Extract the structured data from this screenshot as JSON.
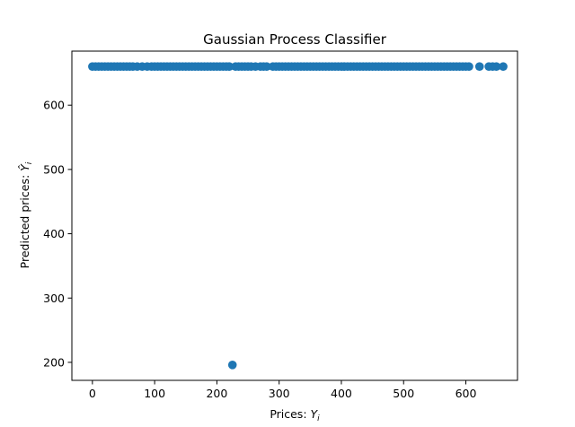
{
  "chart_data": {
    "type": "scatter",
    "title": "Gaussian Process Classifier",
    "xlabel": {
      "prefix": "Prices: ",
      "var": "Y",
      "sub": "i"
    },
    "ylabel": {
      "prefix": "Predicted prices: ",
      "var": "Ŷ",
      "sub": "i"
    },
    "xlim": [
      -33,
      683
    ],
    "ylim": [
      172,
      684
    ],
    "xticks": [
      0,
      100,
      200,
      300,
      400,
      500,
      600
    ],
    "yticks": [
      200,
      300,
      400,
      500,
      600
    ],
    "grid": false,
    "marker_color": "#1f77b4",
    "series": [
      {
        "x": [
          0,
          5,
          10,
          15,
          20,
          25,
          30,
          35,
          40,
          45,
          50,
          55,
          60,
          65,
          72,
          80,
          88,
          95,
          100,
          105,
          110,
          115,
          120,
          125,
          130,
          135,
          140,
          145,
          150,
          155,
          160,
          165,
          170,
          175,
          180,
          185,
          190,
          195,
          200,
          205,
          210,
          215,
          220,
          230,
          235,
          240,
          245,
          250,
          255,
          262,
          270,
          275,
          280,
          290,
          295,
          300,
          305,
          310,
          315,
          320,
          325,
          330,
          335,
          340,
          345,
          350,
          355,
          360,
          365,
          370,
          375,
          380,
          385,
          390,
          395,
          400,
          405,
          410,
          415,
          420,
          425,
          430,
          435,
          440,
          445,
          450,
          455,
          460,
          465,
          470,
          475,
          480,
          485,
          490,
          495,
          500,
          505,
          510,
          515,
          520,
          525,
          530,
          535,
          540,
          545,
          550,
          555,
          560,
          565,
          570,
          575,
          580,
          585,
          590,
          595,
          600,
          605,
          622,
          637,
          643,
          649,
          660,
          225
        ],
        "y": [
          660,
          660,
          660,
          660,
          660,
          660,
          660,
          660,
          660,
          660,
          660,
          660,
          660,
          660,
          660,
          660,
          660,
          660,
          660,
          660,
          660,
          660,
          660,
          660,
          660,
          660,
          660,
          660,
          660,
          660,
          660,
          660,
          660,
          660,
          660,
          660,
          660,
          660,
          660,
          660,
          660,
          660,
          660,
          660,
          660,
          660,
          660,
          660,
          660,
          660,
          660,
          660,
          660,
          660,
          660,
          660,
          660,
          660,
          660,
          660,
          660,
          660,
          660,
          660,
          660,
          660,
          660,
          660,
          660,
          660,
          660,
          660,
          660,
          660,
          660,
          660,
          660,
          660,
          660,
          660,
          660,
          660,
          660,
          660,
          660,
          660,
          660,
          660,
          660,
          660,
          660,
          660,
          660,
          660,
          660,
          660,
          660,
          660,
          660,
          660,
          660,
          660,
          660,
          660,
          660,
          660,
          660,
          660,
          660,
          660,
          660,
          660,
          660,
          660,
          660,
          660,
          660,
          660,
          660,
          660,
          660,
          660,
          196
        ]
      }
    ]
  }
}
